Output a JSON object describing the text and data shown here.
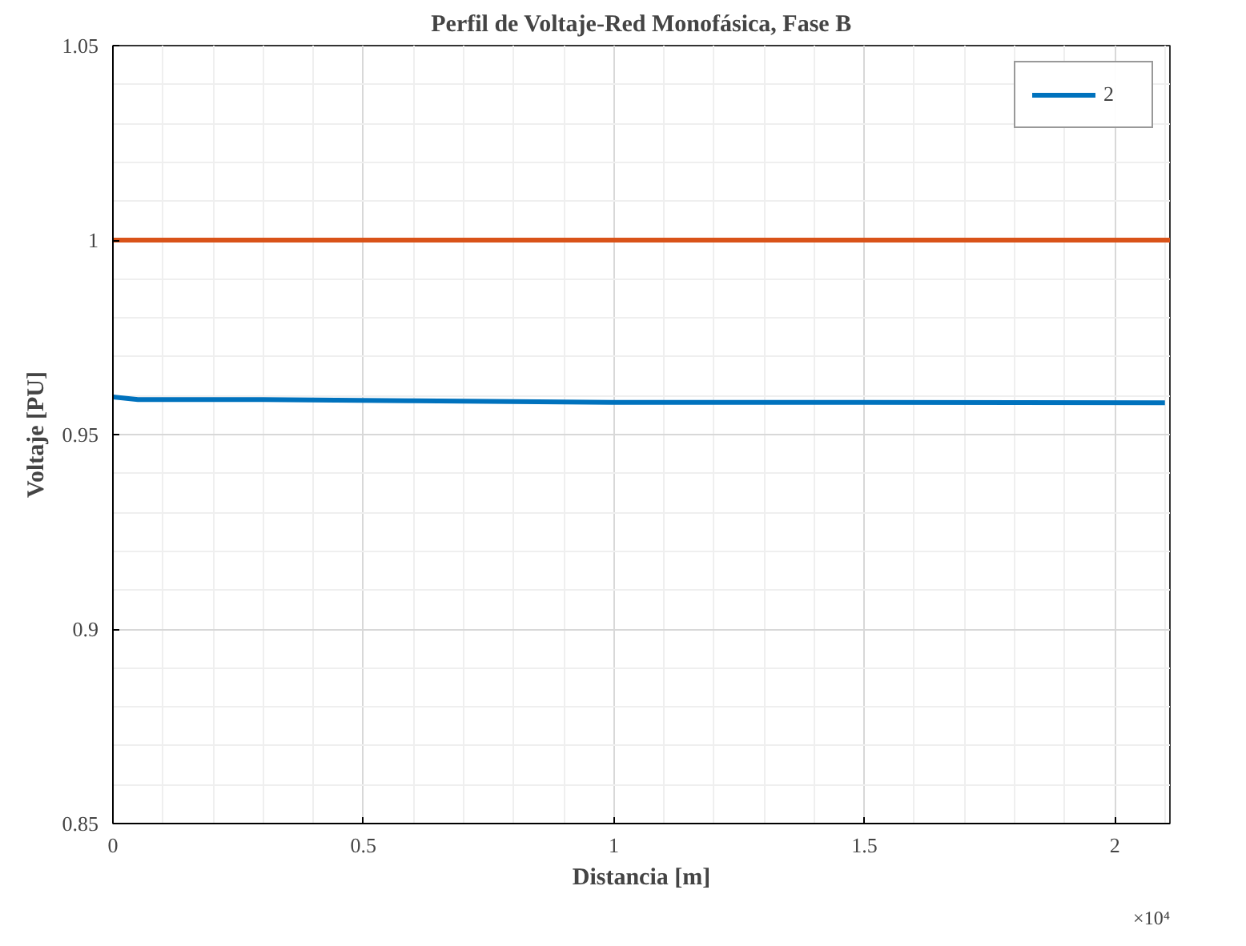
{
  "chart_data": {
    "type": "line",
    "title": "Perfil de Voltaje-Red Monofásica, Fase B",
    "xlabel": "Distancia [m]",
    "ylabel": "Voltaje [PU]",
    "annotations": [
      "×10⁴"
    ],
    "series": [
      {
        "name": "2",
        "color": "#0072bd",
        "x": [
          0,
          0.05,
          0.3,
          0.6,
          1.0,
          1.5,
          2.1
        ],
        "values": [
          0.9597,
          0.959,
          0.959,
          0.9587,
          0.9583,
          0.9583,
          0.9582
        ]
      },
      {
        "color": "#d95319",
        "x": [
          0,
          2.11
        ],
        "values": [
          1.0,
          1.0
        ]
      }
    ],
    "xlim": [
      0,
      2.11
    ],
    "xticks": [
      0,
      0.5,
      1,
      1.5,
      2
    ],
    "ylim": [
      0.85,
      1.05
    ],
    "yticks": [
      0.85,
      0.9,
      0.95,
      1,
      1.05
    ],
    "grid": true,
    "legend": "top right",
    "line_style": "solid"
  }
}
